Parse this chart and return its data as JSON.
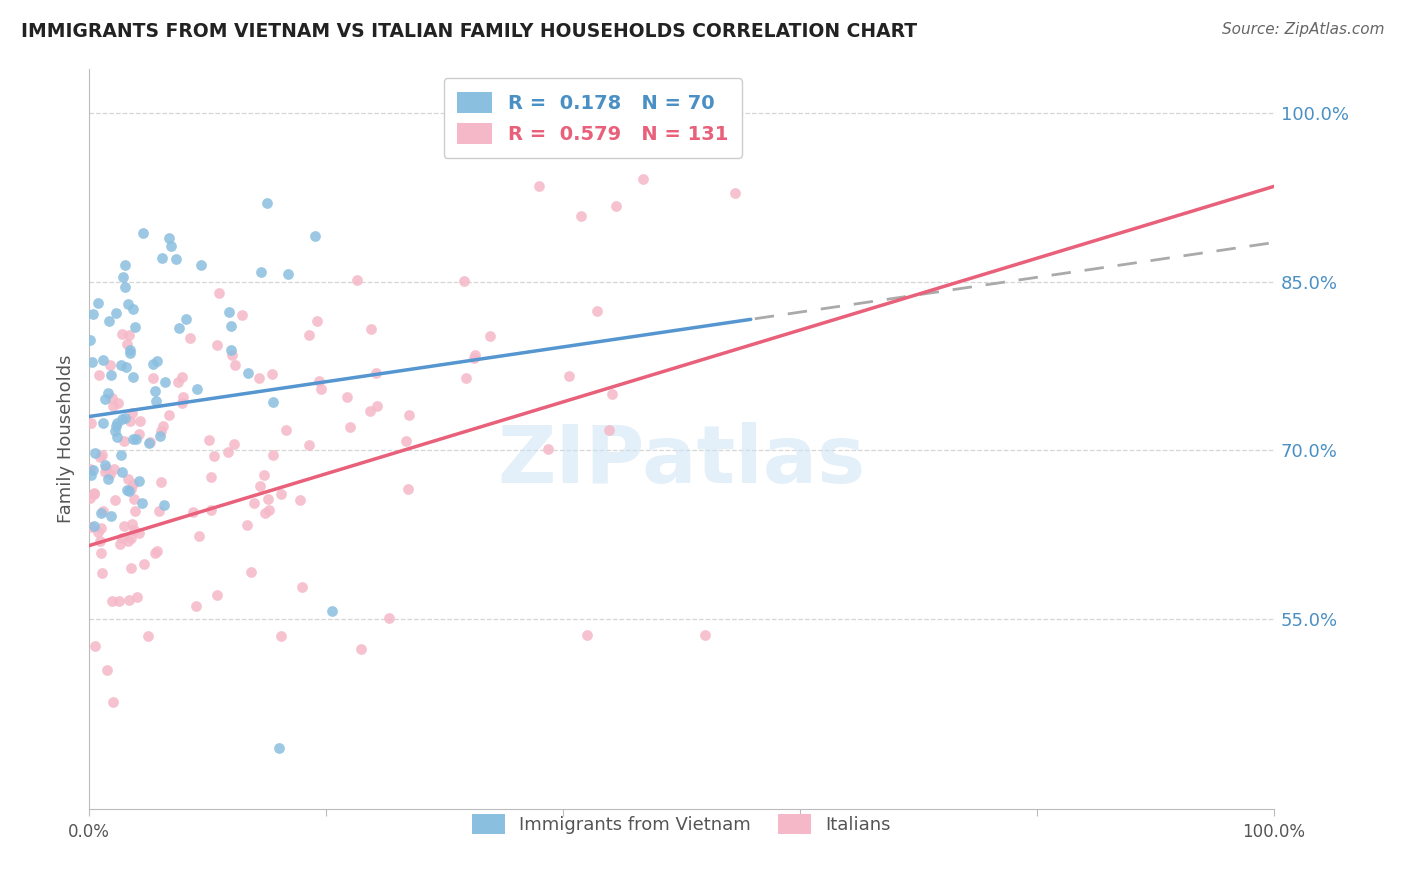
{
  "title": "IMMIGRANTS FROM VIETNAM VS ITALIAN FAMILY HOUSEHOLDS CORRELATION CHART",
  "source": "Source: ZipAtlas.com",
  "ylabel": "Family Households",
  "ytick_labels": [
    "100.0%",
    "85.0%",
    "70.0%",
    "55.0%"
  ],
  "ytick_values": [
    1.0,
    0.85,
    0.7,
    0.55
  ],
  "xlim": [
    0.0,
    1.0
  ],
  "ylim": [
    0.38,
    1.04
  ],
  "blue_color": "#8bbfe0",
  "pink_color": "#f5b8c8",
  "blue_line_color": "#5595d0",
  "pink_line_color": "#e8607a",
  "blue_r": 0.178,
  "blue_n": 70,
  "pink_r": 0.579,
  "pink_n": 131,
  "watermark_text": "ZIPatlas",
  "legend_label_blue": "Immigrants from Vietnam",
  "legend_label_pink": "Italians",
  "background_color": "#ffffff",
  "grid_color": "#cccccc",
  "legend_blue_r": "0.178",
  "legend_blue_n": "70",
  "legend_pink_r": "0.579",
  "legend_pink_n": "131"
}
